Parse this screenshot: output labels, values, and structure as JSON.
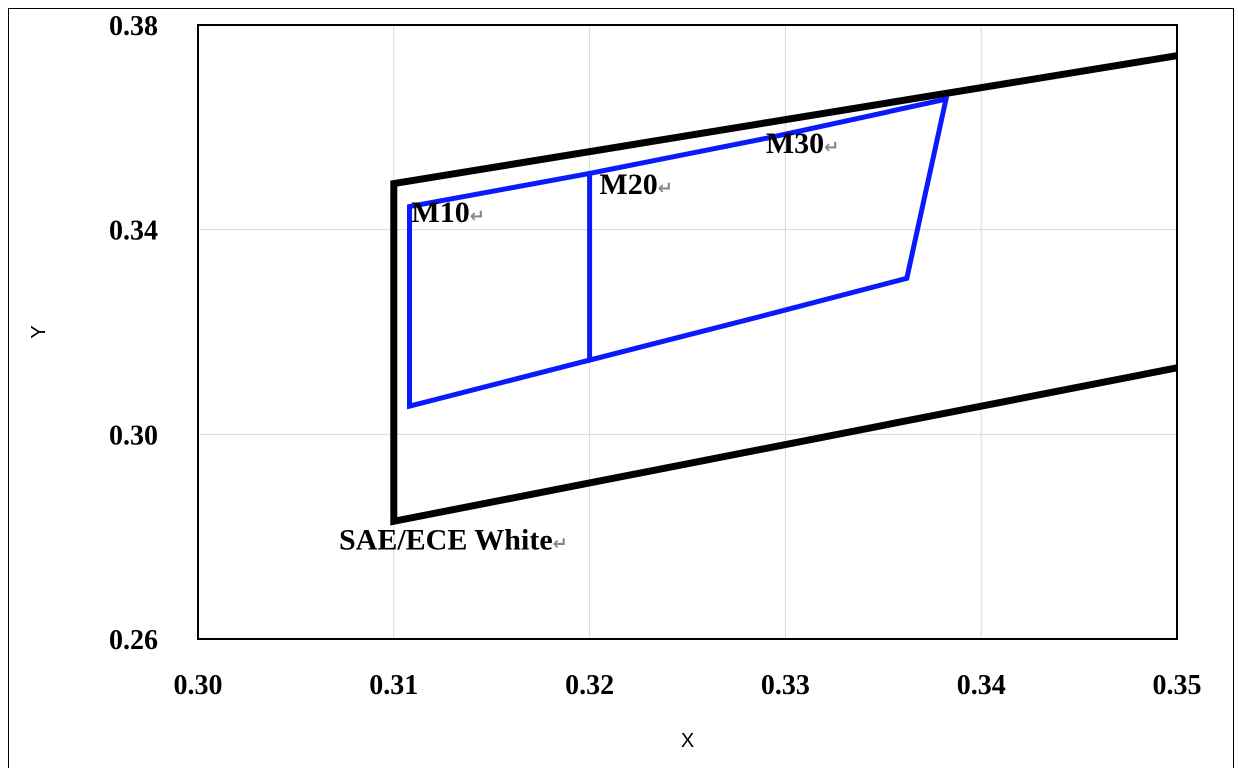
{
  "chart_data": {
    "type": "line",
    "title": "",
    "xlabel": "X",
    "ylabel": "Y",
    "xlim": [
      0.3,
      0.35
    ],
    "ylim": [
      0.26,
      0.38
    ],
    "x_ticks": [
      "0.30",
      "0.31",
      "0.32",
      "0.33",
      "0.34",
      "0.35"
    ],
    "y_ticks": [
      "0.26",
      "0.30",
      "0.34",
      "0.38"
    ],
    "x_tick_values": [
      0.3,
      0.31,
      0.32,
      0.33,
      0.34,
      0.35
    ],
    "y_tick_values": [
      0.26,
      0.3,
      0.34,
      0.38
    ],
    "grid": true,
    "series": [
      {
        "name": "SAE/ECE White",
        "color": "#000000",
        "points": [
          [
            0.35,
            0.374
          ],
          [
            0.31,
            0.349
          ],
          [
            0.31,
            0.283
          ],
          [
            0.35,
            0.313
          ]
        ]
      },
      {
        "name": "M10",
        "color": "#0a1aff",
        "points": [
          [
            0.32,
            0.351
          ],
          [
            0.3108,
            0.3445
          ],
          [
            0.3108,
            0.3055
          ],
          [
            0.32,
            0.3145
          ]
        ]
      },
      {
        "name": "M20",
        "color": "#0a1aff",
        "points": [
          [
            0.3292,
            0.358
          ],
          [
            0.32,
            0.351
          ],
          [
            0.32,
            0.3145
          ],
          [
            0.3292,
            0.3235
          ]
        ]
      },
      {
        "name": "M30",
        "color": "#0a1aff",
        "points": [
          [
            0.3292,
            0.358
          ],
          [
            0.3382,
            0.3655
          ],
          [
            0.3362,
            0.3305
          ],
          [
            0.3292,
            0.3235
          ]
        ]
      }
    ],
    "annotations": [
      {
        "label": "M10",
        "x": 0.3109,
        "y": 0.3415
      },
      {
        "label": "M20",
        "x": 0.3205,
        "y": 0.347
      },
      {
        "label": "M30",
        "x": 0.329,
        "y": 0.355
      },
      {
        "label": "SAE/ECE White",
        "x": 0.3072,
        "y": 0.2775
      }
    ],
    "annotation_mark": "↵"
  }
}
